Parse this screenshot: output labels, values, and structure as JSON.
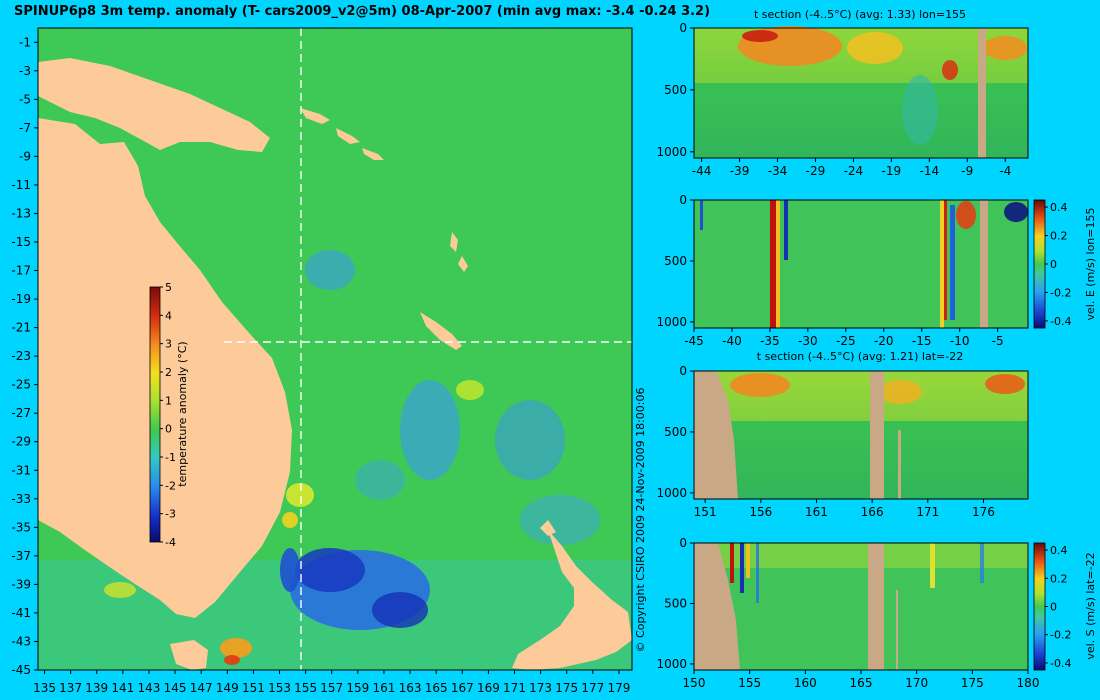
{
  "title": "SPINUP6p8 3m temp. anomaly (T- cars2009_v2@5m) 08-Apr-2007 (min avg max: -3.4 -0.24 3.2)",
  "copyright": "© Copyright CSIRO 2009   24-Nov-2009 18:00:06",
  "colors": {
    "background": "#00d5ff",
    "land": "#fdcb9a",
    "section_land": "#c8a885"
  },
  "chart_data": [
    {
      "id": "map",
      "type": "heatmap",
      "title": "SPINUP6p8 3m temp. anomaly (T- cars2009_v2@5m) 08-Apr-2007 (min avg max: -3.4 -0.24 3.2)",
      "x_ticks": [
        "135",
        "137",
        "139",
        "141",
        "143",
        "145",
        "147",
        "149",
        "151",
        "153",
        "155",
        "157",
        "159",
        "161",
        "163",
        "165",
        "167",
        "169",
        "171",
        "173",
        "175",
        "177",
        "179"
      ],
      "y_ticks": [
        "-1",
        "-3",
        "-5",
        "-7",
        "-9",
        "-11",
        "-13",
        "-15",
        "-17",
        "-19",
        "-21",
        "-23",
        "-25",
        "-27",
        "-29",
        "-31",
        "-33",
        "-35",
        "-37",
        "-39",
        "-41",
        "-43",
        "-45"
      ],
      "xlim": [
        134.5,
        180
      ],
      "ylim": [
        -45,
        0
      ],
      "section_lon": 155,
      "section_lat": -22,
      "colorbar": {
        "label": "temperature anomaly (°C)",
        "ticks": [
          "5",
          "4",
          "3",
          "2",
          "1",
          "0",
          "-1",
          "-2",
          "-3",
          "-4"
        ],
        "range": [
          -4,
          5
        ]
      }
    },
    {
      "id": "section-1",
      "type": "heatmap",
      "title": "t section (-4..5°C) (avg: 1.33) lon=155",
      "x_ticks": [
        "-44",
        "-39",
        "-34",
        "-29",
        "-24",
        "-19",
        "-14",
        "-9",
        "-4"
      ],
      "y_ticks": [
        "0",
        "500",
        "1000"
      ],
      "xlim": [
        -45,
        -1
      ],
      "ylim": [
        1050,
        0
      ]
    },
    {
      "id": "section-2",
      "type": "heatmap",
      "title": "",
      "x_ticks": [
        "-45",
        "-40",
        "-35",
        "-30",
        "-25",
        "-20",
        "-15",
        "-10",
        "-5"
      ],
      "y_ticks": [
        "0",
        "500",
        "1000"
      ],
      "xlim": [
        -45,
        -1
      ],
      "ylim": [
        1050,
        0
      ],
      "colorbar": {
        "label": "vel. E (m/s) lon=155",
        "ticks": [
          "0.4",
          "0.2",
          "0",
          "-0.2",
          "-0.4"
        ],
        "range": [
          -0.45,
          0.45
        ]
      }
    },
    {
      "id": "section-3",
      "type": "heatmap",
      "title": "t section (-4..5°C) (avg: 1.21) lat=-22",
      "x_ticks": [
        "151",
        "156",
        "161",
        "166",
        "171",
        "176"
      ],
      "y_ticks": [
        "0",
        "500",
        "1000"
      ],
      "xlim": [
        150,
        180
      ],
      "ylim": [
        1050,
        0
      ]
    },
    {
      "id": "section-4",
      "type": "heatmap",
      "title": "",
      "x_ticks": [
        "150",
        "155",
        "160",
        "165",
        "170",
        "175",
        "180"
      ],
      "y_ticks": [
        "0",
        "500",
        "1000"
      ],
      "xlim": [
        150,
        180
      ],
      "ylim": [
        1050,
        0
      ],
      "colorbar": {
        "label": "vel. S (m/s) lat=-22",
        "ticks": [
          "0.4",
          "0.2",
          "0",
          "-0.2",
          "-0.4"
        ],
        "range": [
          -0.45,
          0.45
        ]
      }
    }
  ]
}
